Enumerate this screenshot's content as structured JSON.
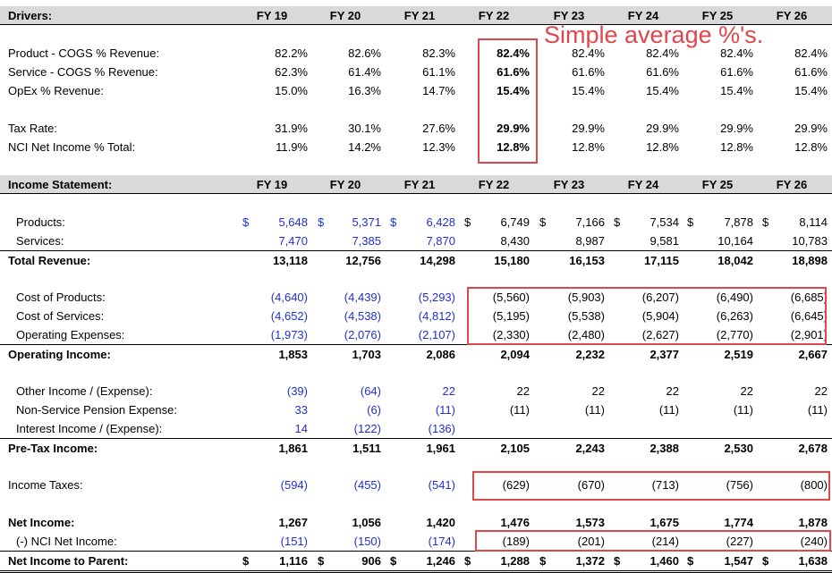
{
  "columns": [
    "FY 19",
    "FY 20",
    "FY 21",
    "FY 22",
    "FY 23",
    "FY 24",
    "FY 25",
    "FY 26"
  ],
  "annotation": "Simple average %'s.",
  "drivers": {
    "title": "Drivers:",
    "rows": [
      {
        "label": "Product - COGS % Revenue:",
        "values": [
          "82.2%",
          "82.6%",
          "82.3%",
          "82.4%",
          "82.4%",
          "82.4%",
          "82.4%",
          "82.4%"
        ]
      },
      {
        "label": "Service - COGS % Revenue:",
        "values": [
          "62.3%",
          "61.4%",
          "61.1%",
          "61.6%",
          "61.6%",
          "61.6%",
          "61.6%",
          "61.6%"
        ]
      },
      {
        "label": "OpEx % Revenue:",
        "values": [
          "15.0%",
          "16.3%",
          "14.7%",
          "15.4%",
          "15.4%",
          "15.4%",
          "15.4%",
          "15.4%"
        ]
      },
      {
        "label": "Tax Rate:",
        "values": [
          "31.9%",
          "30.1%",
          "27.6%",
          "29.9%",
          "29.9%",
          "29.9%",
          "29.9%",
          "29.9%"
        ]
      },
      {
        "label": "NCI Net Income % Total:",
        "values": [
          "11.9%",
          "14.2%",
          "12.3%",
          "12.8%",
          "12.8%",
          "12.8%",
          "12.8%",
          "12.8%"
        ]
      }
    ]
  },
  "income_statement": {
    "title": "Income Statement:",
    "currency": "$",
    "rows": [
      {
        "label": "Products:",
        "values": [
          "5,648",
          "5,371",
          "6,428",
          "6,749",
          "7,166",
          "7,534",
          "7,878",
          "8,114"
        ]
      },
      {
        "label": "Services:",
        "values": [
          "7,470",
          "7,385",
          "7,870",
          "8,430",
          "8,987",
          "9,581",
          "10,164",
          "10,783"
        ]
      },
      {
        "label": "Total Revenue:",
        "values": [
          "13,118",
          "12,756",
          "14,298",
          "15,180",
          "16,153",
          "17,115",
          "18,042",
          "18,898"
        ]
      },
      {
        "label": "Cost of Products:",
        "values": [
          "(4,640)",
          "(4,439)",
          "(5,293)",
          "(5,560)",
          "(5,903)",
          "(6,207)",
          "(6,490)",
          "(6,685)"
        ]
      },
      {
        "label": "Cost of Services:",
        "values": [
          "(4,652)",
          "(4,538)",
          "(4,812)",
          "(5,195)",
          "(5,538)",
          "(5,904)",
          "(6,263)",
          "(6,645)"
        ]
      },
      {
        "label": "Operating Expenses:",
        "values": [
          "(1,973)",
          "(2,076)",
          "(2,107)",
          "(2,330)",
          "(2,480)",
          "(2,627)",
          "(2,770)",
          "(2,901)"
        ]
      },
      {
        "label": "Operating Income:",
        "values": [
          "1,853",
          "1,703",
          "2,086",
          "2,094",
          "2,232",
          "2,377",
          "2,519",
          "2,667"
        ]
      },
      {
        "label": "Other Income / (Expense):",
        "values": [
          "(39)",
          "(64)",
          "22",
          "22",
          "22",
          "22",
          "22",
          "22"
        ]
      },
      {
        "label": "Non-Service Pension Expense:",
        "values": [
          "33",
          "(6)",
          "(11)",
          "(11)",
          "(11)",
          "(11)",
          "(11)",
          "(11)"
        ]
      },
      {
        "label": "Interest Income / (Expense):",
        "values": [
          "14",
          "(122)",
          "(136)",
          "",
          "",
          "",
          "",
          ""
        ]
      },
      {
        "label": "Pre-Tax Income:",
        "values": [
          "1,861",
          "1,511",
          "1,961",
          "2,105",
          "2,243",
          "2,388",
          "2,530",
          "2,678"
        ]
      },
      {
        "label": "Income Taxes:",
        "values": [
          "(594)",
          "(455)",
          "(541)",
          "(629)",
          "(670)",
          "(713)",
          "(756)",
          "(800)"
        ]
      },
      {
        "label": "Net Income:",
        "values": [
          "1,267",
          "1,056",
          "1,420",
          "1,476",
          "1,573",
          "1,675",
          "1,774",
          "1,878"
        ]
      },
      {
        "label": "(-) NCI Net Income:",
        "values": [
          "(151)",
          "(150)",
          "(174)",
          "(189)",
          "(201)",
          "(214)",
          "(227)",
          "(240)"
        ]
      },
      {
        "label": "Net Income to Parent:",
        "values": [
          "1,116",
          "906",
          "1,246",
          "1,288",
          "1,372",
          "1,460",
          "1,547",
          "1,638"
        ]
      }
    ]
  }
}
